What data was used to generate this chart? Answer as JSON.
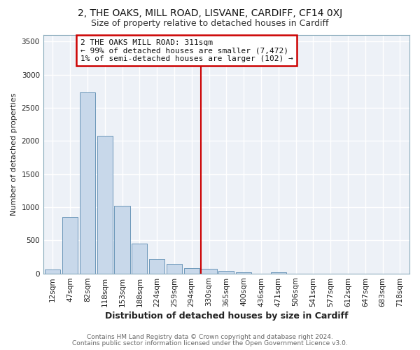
{
  "title1": "2, THE OAKS, MILL ROAD, LISVANE, CARDIFF, CF14 0XJ",
  "title2": "Size of property relative to detached houses in Cardiff",
  "xlabel": "Distribution of detached houses by size in Cardiff",
  "ylabel": "Number of detached properties",
  "bin_labels": [
    "12sqm",
    "47sqm",
    "82sqm",
    "118sqm",
    "153sqm",
    "188sqm",
    "224sqm",
    "259sqm",
    "294sqm",
    "330sqm",
    "365sqm",
    "400sqm",
    "436sqm",
    "471sqm",
    "506sqm",
    "541sqm",
    "577sqm",
    "612sqm",
    "647sqm",
    "683sqm",
    "718sqm"
  ],
  "bar_values": [
    55,
    855,
    2730,
    2080,
    1020,
    455,
    215,
    145,
    75,
    70,
    35,
    15,
    0,
    20,
    0,
    0,
    0,
    0,
    0,
    0,
    0
  ],
  "bar_color": "#c8d8ea",
  "bar_edge_color": "#5a8ab0",
  "vline_x": 8.55,
  "vline_color": "#cc0000",
  "annotation_line1": "2 THE OAKS MILL ROAD: 311sqm",
  "annotation_line2": "← 99% of detached houses are smaller (7,472)",
  "annotation_line3": "1% of semi-detached houses are larger (102) →",
  "annotation_box_color": "#cc0000",
  "annotation_box_fill": "#ffffff",
  "ylim": [
    0,
    3600
  ],
  "yticks": [
    0,
    500,
    1000,
    1500,
    2000,
    2500,
    3000,
    3500
  ],
  "footer1": "Contains HM Land Registry data © Crown copyright and database right 2024.",
  "footer2": "Contains public sector information licensed under the Open Government Licence v3.0.",
  "bg_color": "#ffffff",
  "plot_bg_color": "#edf1f7",
  "grid_color": "#ffffff",
  "title1_fontsize": 10,
  "title2_fontsize": 9,
  "xlabel_fontsize": 9,
  "ylabel_fontsize": 8,
  "footer_fontsize": 6.5,
  "tick_fontsize": 7.5,
  "annot_fontsize": 8
}
